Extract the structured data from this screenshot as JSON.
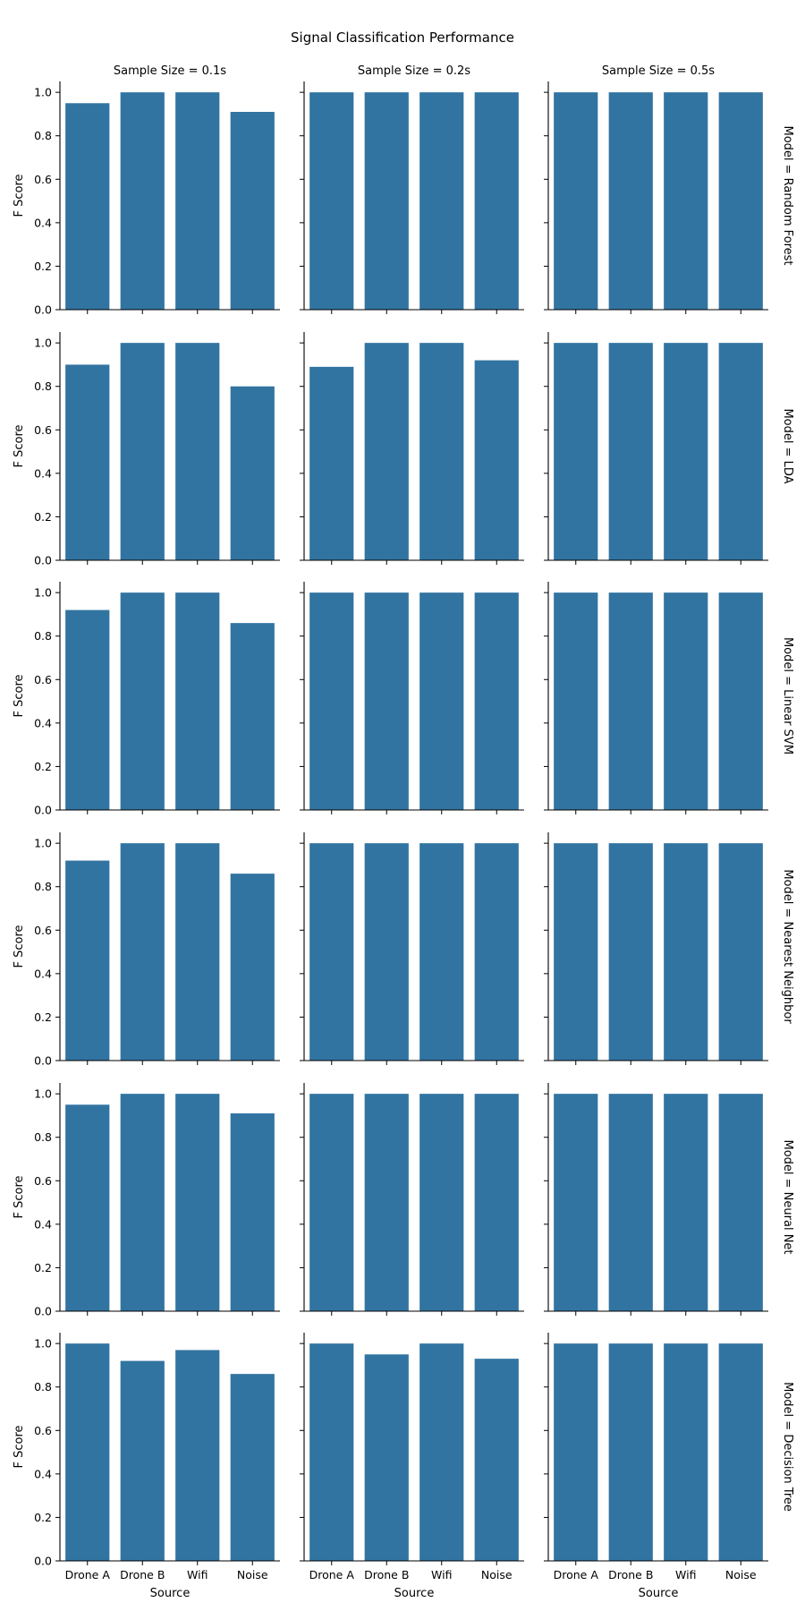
{
  "chart_data": {
    "type": "bar",
    "title": "Signal Classification Performance",
    "xlabel": "Source",
    "ylabel": "F Score",
    "ylim": [
      0,
      1.05
    ],
    "yticks": [
      "0.0",
      "0.2",
      "0.4",
      "0.6",
      "0.8",
      "1.0"
    ],
    "categories": [
      "Drone A",
      "Drone B",
      "Wifi",
      "Noise"
    ],
    "bar_color": "#3274a1",
    "col_titles": [
      "Sample Size = 0.1s",
      "Sample Size = 0.2s",
      "Sample Size = 0.5s"
    ],
    "row_titles": [
      "Model = Random Forest",
      "Model = LDA",
      "Model = Linear SVM",
      "Model = Nearest Neighbor",
      "Model = Neural Net",
      "Model = Decision Tree"
    ],
    "grid": false,
    "values": [
      [
        [
          0.95,
          1.0,
          1.0,
          0.91
        ],
        [
          1.0,
          1.0,
          1.0,
          1.0
        ],
        [
          1.0,
          1.0,
          1.0,
          1.0
        ]
      ],
      [
        [
          0.9,
          1.0,
          1.0,
          0.8
        ],
        [
          0.89,
          1.0,
          1.0,
          0.92
        ],
        [
          1.0,
          1.0,
          1.0,
          1.0
        ]
      ],
      [
        [
          0.92,
          1.0,
          1.0,
          0.86
        ],
        [
          1.0,
          1.0,
          1.0,
          1.0
        ],
        [
          1.0,
          1.0,
          1.0,
          1.0
        ]
      ],
      [
        [
          0.92,
          1.0,
          1.0,
          0.86
        ],
        [
          1.0,
          1.0,
          1.0,
          1.0
        ],
        [
          1.0,
          1.0,
          1.0,
          1.0
        ]
      ],
      [
        [
          0.95,
          1.0,
          1.0,
          0.91
        ],
        [
          1.0,
          1.0,
          1.0,
          1.0
        ],
        [
          1.0,
          1.0,
          1.0,
          1.0
        ]
      ],
      [
        [
          1.0,
          0.92,
          0.97,
          0.86
        ],
        [
          1.0,
          0.95,
          1.0,
          0.93
        ],
        [
          1.0,
          1.0,
          1.0,
          1.0
        ]
      ]
    ]
  }
}
